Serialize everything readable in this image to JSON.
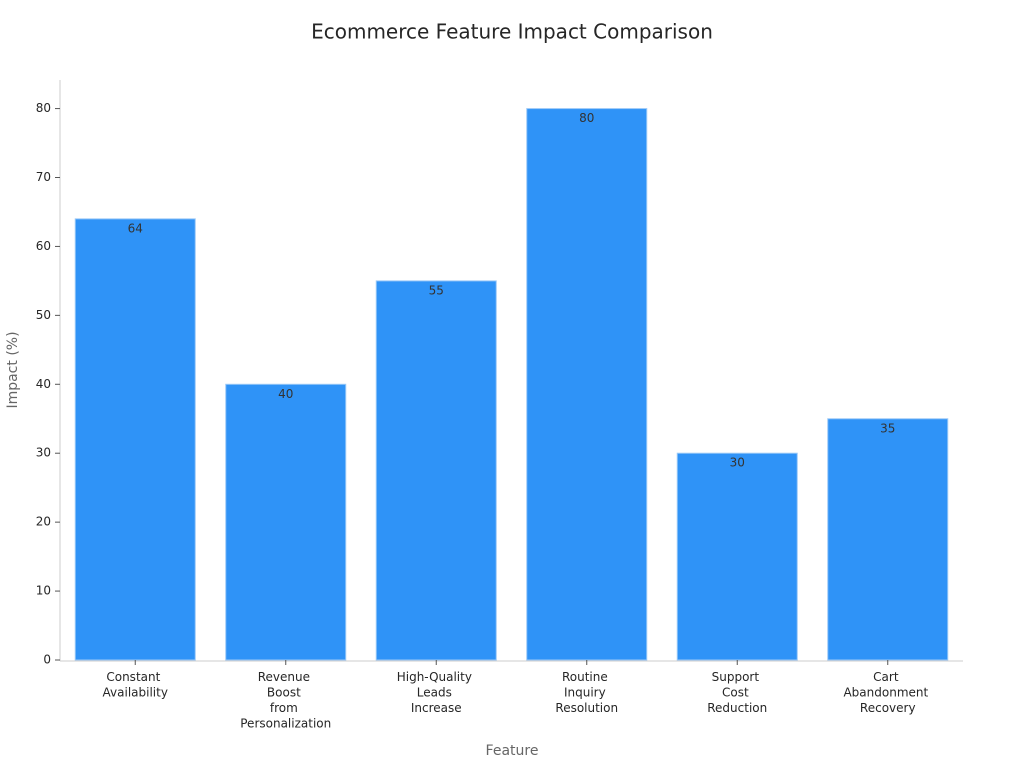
{
  "chart_data": {
    "type": "bar",
    "title": "Ecommerce Feature Impact Comparison",
    "x_label": "Feature",
    "y_label": "Impact (%)",
    "categories": [
      "Constant Availability",
      "Revenue Boost from Personalization",
      "High-Quality Leads Increase",
      "Routine Inquiry Resolution",
      "Support Cost Reduction",
      "Cart Abandonment Recovery"
    ],
    "values": [
      64,
      40,
      55,
      80,
      30,
      35
    ],
    "color": "#2f93f7",
    "ylim": [
      0,
      84
    ],
    "yticks": [
      0,
      10,
      20,
      30,
      40,
      50,
      60,
      70,
      80
    ],
    "grid": false
  }
}
